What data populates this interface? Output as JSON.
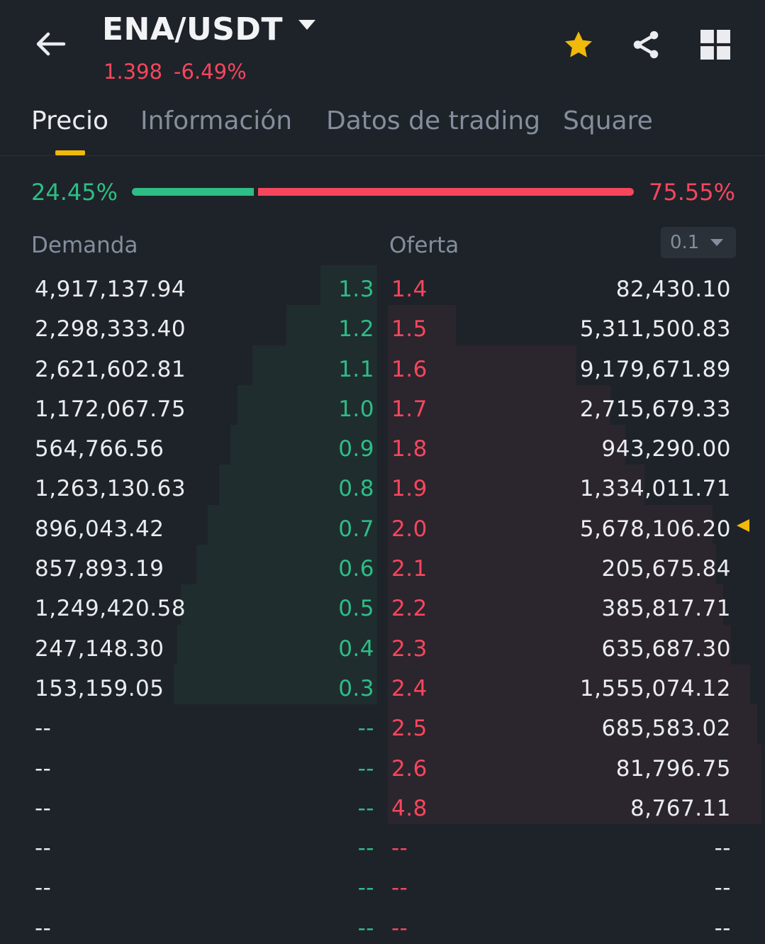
{
  "header": {
    "pair": "ENA/USDT",
    "price": "1.398",
    "change": "-6.49%"
  },
  "icons": {
    "back": "back-arrow-icon",
    "star": "star-icon",
    "share": "share-icon",
    "grid": "grid-icon"
  },
  "colors": {
    "bid": "#2ebd85",
    "ask": "#f6465d",
    "accent": "#f0b90b",
    "background": "#1e2329"
  },
  "tabs": [
    {
      "label": "Precio",
      "active": true
    },
    {
      "label": "Información",
      "active": false
    },
    {
      "label": "Datos de trading",
      "active": false
    },
    {
      "label": "Square",
      "active": false
    }
  ],
  "ratio": {
    "bid_percent": "24.45%",
    "ask_percent": "75.55%",
    "bid_fraction": 0.2445
  },
  "book": {
    "bid_label": "Demanda",
    "ask_label": "Oferta",
    "precision": "0.1",
    "rows": [
      {
        "bid_qty": "4,917,137.94",
        "bid_price": "1.3",
        "ask_price": "1.4",
        "ask_qty": "82,430.10",
        "bid_depth": 0.15,
        "ask_depth": 0.0
      },
      {
        "bid_qty": "2,298,333.40",
        "bid_price": "1.2",
        "ask_price": "1.5",
        "ask_qty": "5,311,500.83",
        "bid_depth": 0.24,
        "ask_depth": 0.18
      },
      {
        "bid_qty": "2,621,602.81",
        "bid_price": "1.1",
        "ask_price": "1.6",
        "ask_qty": "9,179,671.89",
        "bid_depth": 0.33,
        "ask_depth": 0.5
      },
      {
        "bid_qty": "1,172,067.75",
        "bid_price": "1.0",
        "ask_price": "1.7",
        "ask_qty": "2,715,679.33",
        "bid_depth": 0.37,
        "ask_depth": 0.59
      },
      {
        "bid_qty": "564,766.56",
        "bid_price": "0.9",
        "ask_price": "1.8",
        "ask_qty": "943,290.00",
        "bid_depth": 0.39,
        "ask_depth": 0.63
      },
      {
        "bid_qty": "1,263,130.63",
        "bid_price": "0.8",
        "ask_price": "1.9",
        "ask_qty": "1,334,011.71",
        "bid_depth": 0.42,
        "ask_depth": 0.68
      },
      {
        "bid_qty": "896,043.42",
        "bid_price": "0.7",
        "ask_price": "2.0",
        "ask_qty": "5,678,106.20",
        "bid_depth": 0.45,
        "ask_depth": 0.86,
        "marker": true
      },
      {
        "bid_qty": "857,893.19",
        "bid_price": "0.6",
        "ask_price": "2.1",
        "ask_qty": "205,675.84",
        "bid_depth": 0.48,
        "ask_depth": 0.87
      },
      {
        "bid_qty": "1,249,420.58",
        "bid_price": "0.5",
        "ask_price": "2.2",
        "ask_qty": "385,817.71",
        "bid_depth": 0.52,
        "ask_depth": 0.89
      },
      {
        "bid_qty": "247,148.30",
        "bid_price": "0.4",
        "ask_price": "2.3",
        "ask_qty": "635,687.30",
        "bid_depth": 0.53,
        "ask_depth": 0.91
      },
      {
        "bid_qty": "153,159.05",
        "bid_price": "0.3",
        "ask_price": "2.4",
        "ask_qty": "1,555,074.12",
        "bid_depth": 0.54,
        "ask_depth": 0.96
      },
      {
        "bid_qty": "--",
        "bid_price": "--",
        "ask_price": "2.5",
        "ask_qty": "685,583.02",
        "bid_depth": 0,
        "ask_depth": 0.98
      },
      {
        "bid_qty": "--",
        "bid_price": "--",
        "ask_price": "2.6",
        "ask_qty": "81,796.75",
        "bid_depth": 0,
        "ask_depth": 0.99
      },
      {
        "bid_qty": "--",
        "bid_price": "--",
        "ask_price": "4.8",
        "ask_qty": "8,767.11",
        "bid_depth": 0,
        "ask_depth": 0.99
      },
      {
        "bid_qty": "--",
        "bid_price": "--",
        "ask_price": "--",
        "ask_qty": "--",
        "bid_depth": 0,
        "ask_depth": 0
      },
      {
        "bid_qty": "--",
        "bid_price": "--",
        "ask_price": "--",
        "ask_qty": "--",
        "bid_depth": 0,
        "ask_depth": 0
      },
      {
        "bid_qty": "--",
        "bid_price": "--",
        "ask_price": "--",
        "ask_qty": "--",
        "bid_depth": 0,
        "ask_depth": 0
      }
    ]
  }
}
